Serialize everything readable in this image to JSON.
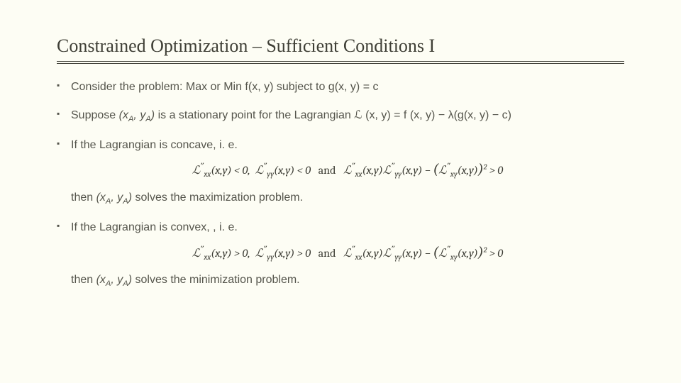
{
  "title": "Constrained Optimization – Sufficient Conditions I",
  "bullets": {
    "b1": "Consider the problem: Max or Min f(x, y) subject to g(x, y) = c",
    "b2_a": "Suppose",
    "b2_pt": "(x_A, y_A)",
    "b2_b": "is a stationary point for the Lagrangian ℒ (x, y) = f (x, y) − λ(g(x, y) − c)",
    "b3": "If the Lagrangian is concave, i. e.",
    "b3_then_a": "then",
    "b3_then_pt": "(x_A, y_A)",
    "b3_then_b": "solves the maximization problem.",
    "b4": "If the Lagrangian is convex, , i. e.",
    "b4_then_a": "then",
    "b4_then_pt": "(x_A, y_A)",
    "b4_then_b": "solves the minimization problem."
  },
  "math": {
    "concave": "ℒ″_xx(x,y) < 0,  ℒ″_yy(x,y) < 0   and   ℒ″_xx(x,y) ℒ″_yy(x,y) − ( ℒ″_xy(x,y) )² > 0",
    "convex": "ℒ″_xx(x,y) > 0,  ℒ″_yy(x,y) > 0   and   ℒ″_xx(x,y) ℒ″_yy(x,y) − ( ℒ″_xy(x,y) )² > 0"
  },
  "style": {
    "background": "#fdfdf4",
    "title_color": "#3f3f36",
    "text_color": "#55554c",
    "title_fontsize": 26,
    "body_fontsize": 16,
    "math_fontsize": 16,
    "rule_style": "double",
    "bullet_marker": "▪"
  }
}
